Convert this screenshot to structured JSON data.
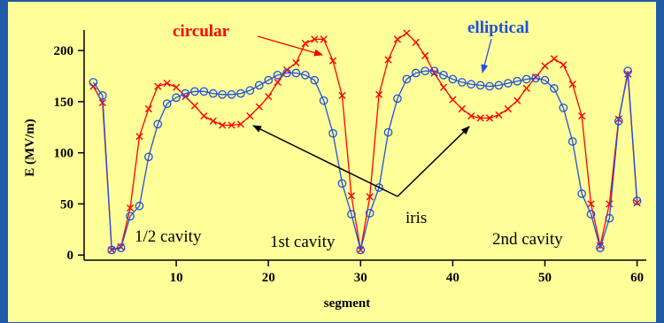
{
  "chart_data": {
    "type": "line",
    "xlabel": "segment",
    "ylabel": "E (MV/m)",
    "xlim": [
      0,
      61
    ],
    "ylim": [
      -5,
      220
    ],
    "xticks": [
      10,
      20,
      30,
      40,
      50,
      60
    ],
    "yticks": [
      0,
      50,
      100,
      150,
      200
    ],
    "grid": false,
    "series": [
      {
        "name": "circular",
        "color": "#ff0000",
        "marker": "x",
        "x": [
          1,
          2,
          3,
          4,
          5,
          6,
          7,
          8,
          9,
          10,
          11,
          12,
          13,
          14,
          15,
          16,
          17,
          18,
          19,
          20,
          21,
          22,
          23,
          24,
          25,
          26,
          27,
          28,
          29,
          30,
          31,
          32,
          33,
          34,
          35,
          36,
          37,
          38,
          39,
          40,
          41,
          42,
          43,
          44,
          45,
          46,
          47,
          48,
          49,
          50,
          51,
          52,
          53,
          54,
          55,
          56,
          57,
          58,
          59,
          60
        ],
        "y": [
          165,
          149,
          5,
          8,
          46,
          116,
          143,
          165,
          168,
          164,
          155,
          146,
          136,
          131,
          127,
          127,
          128,
          136,
          145,
          155,
          169,
          181,
          188,
          207,
          211,
          211,
          190,
          156,
          58,
          5,
          57,
          157,
          191,
          211,
          217,
          208,
          195,
          178,
          164,
          152,
          143,
          136,
          134,
          134,
          137,
          143,
          151,
          163,
          174,
          185,
          192,
          186,
          167,
          136,
          50,
          9,
          50,
          133,
          177,
          51
        ]
      },
      {
        "name": "elliptical",
        "color": "#1f4fe0",
        "marker": "o",
        "x": [
          1,
          2,
          3,
          4,
          5,
          6,
          7,
          8,
          9,
          10,
          11,
          12,
          13,
          14,
          15,
          16,
          17,
          18,
          19,
          20,
          21,
          22,
          23,
          24,
          25,
          26,
          27,
          28,
          29,
          30,
          31,
          32,
          33,
          34,
          35,
          36,
          37,
          38,
          39,
          40,
          41,
          42,
          43,
          44,
          45,
          46,
          47,
          48,
          49,
          50,
          51,
          52,
          53,
          54,
          55,
          56,
          57,
          58,
          59,
          60
        ],
        "y": [
          169,
          156,
          5,
          7,
          38,
          48,
          96,
          128,
          148,
          154,
          158,
          160,
          160,
          158,
          157,
          157,
          158,
          161,
          166,
          171,
          176,
          178,
          178,
          176,
          171,
          151,
          119,
          70,
          40,
          5,
          41,
          66,
          120,
          153,
          172,
          178,
          180,
          180,
          176,
          172,
          169,
          167,
          166,
          165,
          166,
          168,
          170,
          172,
          173,
          171,
          163,
          144,
          111,
          60,
          40,
          7,
          36,
          131,
          180,
          53
        ]
      }
    ],
    "annotations": [
      "1/2 cavity",
      "1st cavity",
      "2nd cavity",
      "iris",
      "circular",
      "elliptical"
    ]
  }
}
